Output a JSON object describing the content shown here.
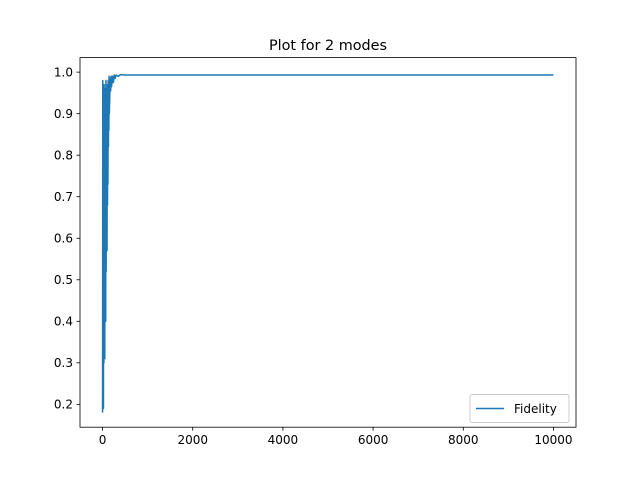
{
  "chart_data": {
    "type": "line",
    "title": "Plot for 2 modes",
    "xlabel": "",
    "ylabel": "",
    "xlim": [
      -500,
      10500
    ],
    "ylim": [
      0.145,
      1.035
    ],
    "xticks": [
      0,
      2000,
      4000,
      6000,
      8000,
      10000
    ],
    "xtick_labels": [
      "0",
      "2000",
      "4000",
      "6000",
      "8000",
      "10000"
    ],
    "yticks": [
      0.2,
      0.3,
      0.4,
      0.5,
      0.6,
      0.7,
      0.8,
      0.9,
      1.0
    ],
    "ytick_labels": [
      "0.2",
      "0.3",
      "0.4",
      "0.5",
      "0.6",
      "0.7",
      "0.8",
      "0.9",
      "1.0"
    ],
    "grid": false,
    "legend_position": "lower right",
    "series": [
      {
        "name": "Fidelity",
        "color": "#1f77b4",
        "x": [
          0,
          5,
          10,
          15,
          20,
          25,
          30,
          35,
          40,
          45,
          50,
          55,
          60,
          65,
          70,
          75,
          80,
          85,
          90,
          95,
          100,
          105,
          110,
          115,
          120,
          125,
          130,
          135,
          140,
          145,
          150,
          160,
          170,
          180,
          190,
          200,
          220,
          240,
          260,
          280,
          300,
          350,
          400,
          500,
          700,
          1000,
          2000,
          3000,
          4000,
          5000,
          6000,
          7000,
          8000,
          9000,
          10000
        ],
        "y": [
          0.18,
          0.98,
          0.22,
          0.95,
          0.19,
          0.93,
          0.3,
          0.97,
          0.37,
          0.9,
          0.31,
          0.96,
          0.55,
          0.86,
          0.4,
          0.98,
          0.52,
          0.92,
          0.6,
          0.95,
          0.57,
          0.97,
          0.68,
          0.92,
          0.73,
          0.98,
          0.82,
          0.94,
          0.86,
          0.99,
          0.9,
          0.94,
          0.985,
          0.955,
          0.99,
          0.965,
          0.99,
          0.975,
          0.993,
          0.985,
          0.993,
          0.99,
          0.994,
          0.993,
          0.993,
          0.993,
          0.993,
          0.993,
          0.993,
          0.993,
          0.993,
          0.993,
          0.993,
          0.993,
          0.993
        ]
      }
    ]
  }
}
